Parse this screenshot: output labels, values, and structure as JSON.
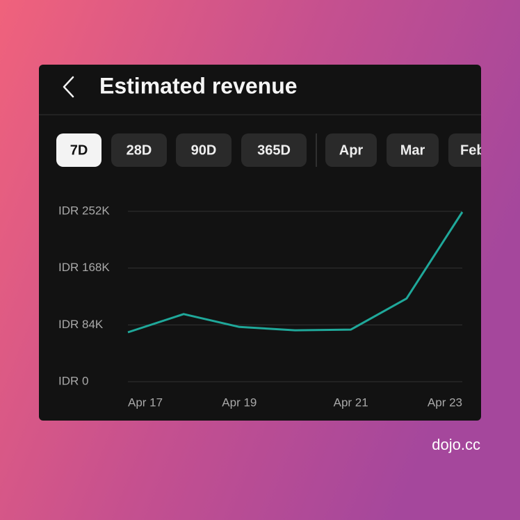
{
  "header": {
    "title": "Estimated revenue"
  },
  "tabs": [
    "7D",
    "28D",
    "90D",
    "365D",
    "Apr",
    "Mar",
    "Feb"
  ],
  "chart_data": {
    "type": "line",
    "categories": [
      "Apr 17",
      null,
      "Apr 19",
      null,
      "Apr 21",
      null,
      "Apr 23"
    ],
    "values": [
      73000,
      100000,
      81000,
      76000,
      77000,
      123000,
      251000
    ],
    "color": "#1fa89a",
    "ylim": [
      0,
      252000
    ],
    "yticks": [
      {
        "value": 0,
        "label": "IDR 0"
      },
      {
        "value": 84000,
        "label": "IDR 84K"
      },
      {
        "value": 168000,
        "label": "IDR 168K"
      },
      {
        "value": 252000,
        "label": "IDR 252K"
      }
    ],
    "grid": true
  },
  "watermark": "dojo.cc"
}
